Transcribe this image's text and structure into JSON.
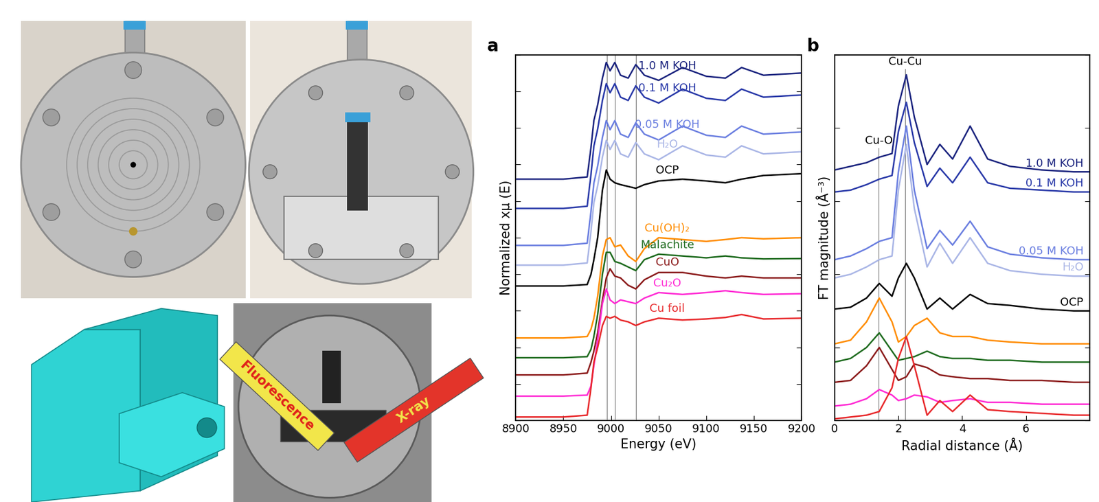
{
  "photos": {
    "labels": [
      "Fluorescence",
      "X-ray"
    ]
  },
  "chart_data": [
    {
      "type": "line",
      "panel_label": "a",
      "x_label": "Energy (eV)",
      "y_label": "Normalized xμ (E)",
      "xlim": [
        8900,
        9200
      ],
      "xticks": [
        8900,
        8950,
        9000,
        9050,
        9100,
        9150,
        9200
      ],
      "ylim": [
        0,
        10
      ],
      "yticks": [
        0,
        1,
        2,
        3,
        4,
        5,
        6,
        7,
        8,
        9,
        10
      ],
      "tick_labels": "x",
      "reference_lines": [
        8996,
        9004,
        9026
      ],
      "x": [
        8900,
        8950,
        8975,
        8979,
        8982,
        8986,
        8991,
        8995,
        8999,
        9004,
        9010,
        9018,
        9026,
        9035,
        9050,
        9075,
        9100,
        9120,
        9137,
        9160,
        9200
      ],
      "series": [
        {
          "name": "1.0 M KOH",
          "color": "#1a237e",
          "values": [
            6.6,
            6.6,
            6.66,
            7.47,
            8.2,
            8.63,
            9.36,
            9.79,
            9.56,
            9.79,
            9.44,
            9.36,
            9.73,
            9.44,
            9.3,
            9.65,
            9.41,
            9.36,
            9.65,
            9.44,
            9.5
          ]
        },
        {
          "name": "0.1 M KOH",
          "color": "#2838a8",
          "values": [
            5.8,
            5.8,
            5.86,
            6.73,
            7.5,
            7.97,
            8.75,
            9.21,
            8.96,
            9.21,
            8.84,
            8.75,
            9.15,
            8.84,
            8.68,
            9.06,
            8.81,
            8.75,
            9.06,
            8.84,
            8.9
          ]
        },
        {
          "name": "0.05 M KOH",
          "color": "#6a7ee0",
          "values": [
            4.79,
            4.79,
            4.85,
            5.72,
            6.49,
            6.96,
            7.74,
            8.2,
            7.95,
            8.2,
            7.83,
            7.74,
            8.14,
            7.83,
            7.67,
            8.05,
            7.8,
            7.74,
            8.05,
            7.83,
            7.89
          ]
        },
        {
          "name": "H₂O",
          "color": "#aab6e6",
          "values": [
            4.25,
            4.25,
            4.31,
            5.18,
            5.95,
            6.42,
            7.2,
            7.66,
            7.41,
            7.66,
            7.29,
            7.2,
            7.6,
            7.29,
            7.13,
            7.51,
            7.26,
            7.2,
            7.51,
            7.29,
            7.35
          ]
        },
        {
          "name": "OCP",
          "color": "#000000",
          "values": [
            3.68,
            3.68,
            3.72,
            4.0,
            4.4,
            5.0,
            6.3,
            6.85,
            6.6,
            6.5,
            6.45,
            6.4,
            6.35,
            6.45,
            6.55,
            6.6,
            6.55,
            6.5,
            6.6,
            6.7,
            6.75
          ]
        },
        {
          "name": "Cu(OH)₂",
          "color": "#ff8c00",
          "values": [
            2.26,
            2.26,
            2.3,
            2.5,
            2.8,
            3.4,
            4.5,
            4.95,
            5.0,
            4.75,
            4.8,
            4.5,
            4.35,
            4.7,
            5.0,
            4.95,
            4.9,
            4.95,
            5.0,
            4.97,
            5.0
          ]
        },
        {
          "name": "Malachite",
          "color": "#1e6b1e",
          "values": [
            1.72,
            1.72,
            1.75,
            1.95,
            2.3,
            2.9,
            4.0,
            4.6,
            4.6,
            4.35,
            4.3,
            4.2,
            4.1,
            4.4,
            4.55,
            4.5,
            4.45,
            4.5,
            4.45,
            4.42,
            4.43
          ]
        },
        {
          "name": "CuO",
          "color": "#8b1a1a",
          "values": [
            1.25,
            1.25,
            1.3,
            1.6,
            1.9,
            2.4,
            3.3,
            3.9,
            4.15,
            3.95,
            3.9,
            3.7,
            3.6,
            3.85,
            4.05,
            4.05,
            3.95,
            3.9,
            3.95,
            3.9,
            3.9
          ]
        },
        {
          "name": "Cu₂O",
          "color": "#ff2ad4",
          "values": [
            0.67,
            0.67,
            0.7,
            0.95,
            1.5,
            2.2,
            3.2,
            3.6,
            3.3,
            3.2,
            3.3,
            3.25,
            3.2,
            3.35,
            3.5,
            3.45,
            3.5,
            3.55,
            3.5,
            3.45,
            3.47
          ]
        },
        {
          "name": "Cu foil",
          "color": "#e8282b",
          "values": [
            0.1,
            0.1,
            0.15,
            0.9,
            1.6,
            2.0,
            2.6,
            2.85,
            2.8,
            2.85,
            2.75,
            2.7,
            2.6,
            2.7,
            2.8,
            2.75,
            2.78,
            2.82,
            2.9,
            2.78,
            2.8
          ]
        }
      ]
    },
    {
      "type": "line",
      "panel_label": "b",
      "x_label": "Radial distance (Å)",
      "y_label": "FT magnitude (Å⁻³)",
      "xlim": [
        0,
        8
      ],
      "xticks": [
        0,
        2,
        4,
        6
      ],
      "ylim": [
        0,
        10
      ],
      "yticks": [
        0,
        2,
        4,
        6,
        8,
        10
      ],
      "tick_labels": "x",
      "annotations": [
        {
          "text": "Cu-O",
          "x": 1.38
        },
        {
          "text": "Cu-Cu",
          "x": 2.22
        }
      ],
      "x": [
        0,
        0.5,
        1.0,
        1.4,
        1.8,
        2.0,
        2.25,
        2.5,
        2.9,
        3.3,
        3.7,
        4.25,
        4.8,
        5.5,
        6.5,
        7.5,
        8.0
      ],
      "series": [
        {
          "name": "1.0 M KOH",
          "color": "#1a237e",
          "values": [
            6.85,
            6.95,
            7.05,
            7.2,
            7.3,
            8.6,
            9.45,
            8.3,
            7.0,
            7.55,
            7.15,
            8.05,
            7.15,
            6.95,
            6.85,
            6.8,
            6.8
          ]
        },
        {
          "name": "0.1 M KOH",
          "color": "#2838a8",
          "values": [
            6.25,
            6.3,
            6.45,
            6.6,
            6.7,
            7.9,
            8.7,
            7.6,
            6.4,
            6.9,
            6.5,
            7.2,
            6.5,
            6.35,
            6.3,
            6.25,
            6.25
          ]
        },
        {
          "name": "0.05 M KOH",
          "color": "#6a7ee0",
          "values": [
            4.4,
            4.5,
            4.7,
            4.9,
            5.0,
            6.8,
            8.05,
            6.3,
            4.7,
            5.2,
            4.8,
            5.45,
            4.75,
            4.55,
            4.45,
            4.4,
            4.4
          ]
        },
        {
          "name": "H₂O",
          "color": "#aab6e6",
          "values": [
            3.9,
            4.0,
            4.2,
            4.4,
            4.5,
            6.3,
            7.55,
            5.8,
            4.2,
            4.85,
            4.3,
            5.0,
            4.3,
            4.1,
            4.0,
            3.95,
            3.95
          ]
        },
        {
          "name": "OCP",
          "color": "#000000",
          "values": [
            3.05,
            3.1,
            3.35,
            3.75,
            3.4,
            3.9,
            4.3,
            3.9,
            3.05,
            3.35,
            3.05,
            3.45,
            3.2,
            3.15,
            3.05,
            3.0,
            3.0
          ]
        },
        {
          "color": "#ff8c00",
          "values": [
            2.1,
            2.2,
            2.7,
            3.35,
            2.7,
            2.15,
            2.3,
            2.6,
            2.8,
            2.4,
            2.3,
            2.3,
            2.2,
            2.15,
            2.1,
            2.1,
            2.1
          ]
        },
        {
          "color": "#1e6b1e",
          "values": [
            1.6,
            1.7,
            2.0,
            2.4,
            1.9,
            1.65,
            1.7,
            1.75,
            1.9,
            1.75,
            1.7,
            1.7,
            1.65,
            1.65,
            1.6,
            1.6,
            1.6
          ]
        },
        {
          "color": "#8b1a1a",
          "values": [
            1.05,
            1.1,
            1.5,
            2.0,
            1.4,
            1.1,
            1.2,
            1.55,
            1.45,
            1.25,
            1.2,
            1.15,
            1.15,
            1.1,
            1.1,
            1.05,
            1.05
          ]
        },
        {
          "color": "#ff2ad4",
          "values": [
            0.4,
            0.45,
            0.6,
            0.85,
            0.7,
            0.55,
            0.6,
            0.7,
            0.65,
            0.5,
            0.55,
            0.6,
            0.5,
            0.5,
            0.45,
            0.45,
            0.45
          ]
        },
        {
          "color": "#e8282b",
          "values": [
            0.05,
            0.1,
            0.15,
            0.25,
            0.9,
            1.7,
            2.3,
            1.5,
            0.15,
            0.55,
            0.25,
            0.7,
            0.3,
            0.25,
            0.2,
            0.15,
            0.15
          ]
        }
      ]
    }
  ]
}
